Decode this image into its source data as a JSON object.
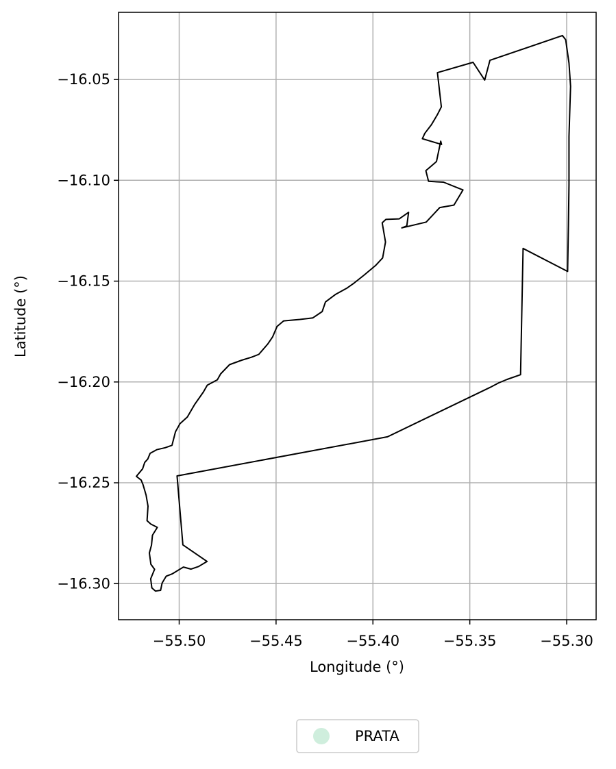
{
  "chart_data": {
    "type": "map",
    "title": "",
    "xlabel": "Longitude (°)",
    "ylabel": "Latitude (°)",
    "xlim": [
      -55.5313,
      -55.2848
    ],
    "ylim": [
      -16.3179,
      -16.0167
    ],
    "grid": true,
    "x_ticks": [
      {
        "value": -55.5,
        "label": "−55.50"
      },
      {
        "value": -55.45,
        "label": "−55.45"
      },
      {
        "value": -55.4,
        "label": "−55.40"
      },
      {
        "value": -55.35,
        "label": "−55.35"
      },
      {
        "value": -55.3,
        "label": "−55.30"
      }
    ],
    "y_ticks": [
      {
        "value": -16.05,
        "label": "−16.05"
      },
      {
        "value": -16.1,
        "label": "−16.10"
      },
      {
        "value": -16.15,
        "label": "−16.15"
      },
      {
        "value": -16.2,
        "label": "−16.20"
      },
      {
        "value": -16.25,
        "label": "−16.25"
      },
      {
        "value": -16.3,
        "label": "−16.30"
      }
    ],
    "legend": {
      "placement": "bottom-center",
      "entries": [
        {
          "label": "PRATA",
          "color": "#cfeedd"
        }
      ]
    },
    "outline_color": "#000000",
    "boundary": [
      [
        -55.3667,
        -16.0466
      ],
      [
        -55.3483,
        -16.0415
      ],
      [
        -55.3423,
        -16.0503
      ],
      [
        -55.3396,
        -16.0405
      ],
      [
        -55.3022,
        -16.0282
      ],
      [
        -55.3005,
        -16.0303
      ],
      [
        -55.2988,
        -16.0419
      ],
      [
        -55.298,
        -16.0534
      ],
      [
        -55.2983,
        -16.0629
      ],
      [
        -55.2988,
        -16.0782
      ],
      [
        -55.2988,
        -16.102
      ],
      [
        -55.2991,
        -16.1215
      ],
      [
        -55.2995,
        -16.1452
      ],
      [
        -55.3225,
        -16.1338
      ],
      [
        -55.3238,
        -16.1964
      ],
      [
        -55.3307,
        -16.1987
      ],
      [
        -55.335,
        -16.2004
      ],
      [
        -55.3395,
        -16.2027
      ],
      [
        -55.3925,
        -16.2272
      ],
      [
        -55.5011,
        -16.2466
      ],
      [
        -55.4981,
        -16.2808
      ],
      [
        -55.4856,
        -16.289
      ],
      [
        -55.49,
        -16.2915
      ],
      [
        -55.4939,
        -16.2928
      ],
      [
        -55.4978,
        -16.2918
      ],
      [
        -55.4994,
        -16.2927
      ],
      [
        -55.5035,
        -16.2951
      ],
      [
        -55.5067,
        -16.2963
      ],
      [
        -55.5088,
        -16.2997
      ],
      [
        -55.5096,
        -16.3033
      ],
      [
        -55.5122,
        -16.3037
      ],
      [
        -55.5141,
        -16.3021
      ],
      [
        -55.5147,
        -16.2976
      ],
      [
        -55.5127,
        -16.2929
      ],
      [
        -55.5146,
        -16.2904
      ],
      [
        -55.5154,
        -16.2848
      ],
      [
        -55.5143,
        -16.2809
      ],
      [
        -55.5138,
        -16.276
      ],
      [
        -55.5113,
        -16.2721
      ],
      [
        -55.5146,
        -16.2705
      ],
      [
        -55.5166,
        -16.2688
      ],
      [
        -55.5161,
        -16.2616
      ],
      [
        -55.5171,
        -16.2561
      ],
      [
        -55.5186,
        -16.2511
      ],
      [
        -55.5196,
        -16.2487
      ],
      [
        -55.5221,
        -16.2468
      ],
      [
        -55.5189,
        -16.2431
      ],
      [
        -55.5178,
        -16.2399
      ],
      [
        -55.5162,
        -16.2382
      ],
      [
        -55.515,
        -16.2354
      ],
      [
        -55.5116,
        -16.2336
      ],
      [
        -55.5072,
        -16.2326
      ],
      [
        -55.5037,
        -16.2314
      ],
      [
        -55.5019,
        -16.2247
      ],
      [
        -55.4996,
        -16.2207
      ],
      [
        -55.4958,
        -16.2174
      ],
      [
        -55.4921,
        -16.2113
      ],
      [
        -55.4875,
        -16.205
      ],
      [
        -55.4855,
        -16.2016
      ],
      [
        -55.4803,
        -16.1989
      ],
      [
        -55.4786,
        -16.196
      ],
      [
        -55.474,
        -16.1914
      ],
      [
        -55.4677,
        -16.1892
      ],
      [
        -55.4626,
        -16.1877
      ],
      [
        -55.4589,
        -16.1863
      ],
      [
        -55.4542,
        -16.1811
      ],
      [
        -55.4518,
        -16.1777
      ],
      [
        -55.4495,
        -16.1725
      ],
      [
        -55.4461,
        -16.1697
      ],
      [
        -55.4377,
        -16.169
      ],
      [
        -55.431,
        -16.1682
      ],
      [
        -55.4262,
        -16.1651
      ],
      [
        -55.4245,
        -16.1603
      ],
      [
        -55.4192,
        -16.1565
      ],
      [
        -55.4135,
        -16.1535
      ],
      [
        -55.4098,
        -16.151
      ],
      [
        -55.4044,
        -16.1469
      ],
      [
        -55.3987,
        -16.1423
      ],
      [
        -55.395,
        -16.1385
      ],
      [
        -55.3935,
        -16.1306
      ],
      [
        -55.3952,
        -16.1211
      ],
      [
        -55.3933,
        -16.1194
      ],
      [
        -55.3864,
        -16.1191
      ],
      [
        -55.3816,
        -16.1159
      ],
      [
        -55.3825,
        -16.1226
      ],
      [
        -55.3851,
        -16.1236
      ],
      [
        -55.3725,
        -16.1207
      ],
      [
        -55.3655,
        -16.1135
      ],
      [
        -55.3582,
        -16.1123
      ],
      [
        -55.3535,
        -16.1048
      ],
      [
        -55.3636,
        -16.1009
      ],
      [
        -55.3713,
        -16.1005
      ],
      [
        -55.3727,
        -16.0952
      ],
      [
        -55.3672,
        -16.0907
      ],
      [
        -55.365,
        -16.0806
      ],
      [
        -55.3646,
        -16.0822
      ],
      [
        -55.3745,
        -16.0794
      ],
      [
        -55.3732,
        -16.0767
      ],
      [
        -55.3698,
        -16.0724
      ],
      [
        -55.3667,
        -16.0674
      ],
      [
        -55.3647,
        -16.0636
      ],
      [
        -55.3667,
        -16.0466
      ]
    ]
  }
}
